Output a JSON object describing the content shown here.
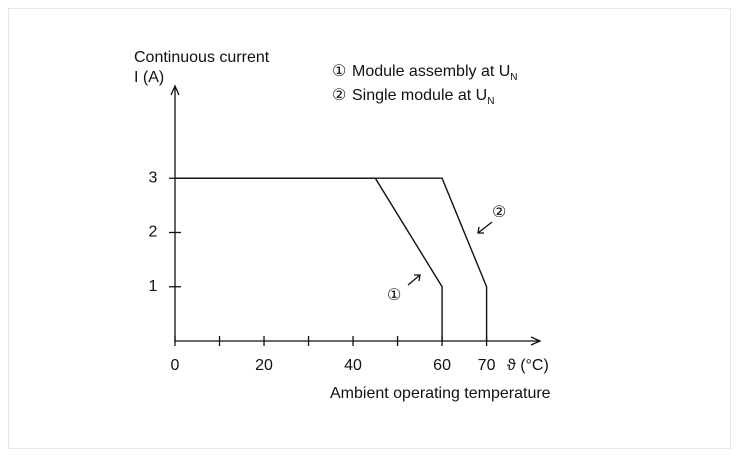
{
  "chart_data": {
    "type": "line",
    "y_label": "Continuous current",
    "y_unit": "I (A)",
    "x_unit": "ϑ (°C)",
    "x_label": "Ambient operating temperature",
    "xlim": [
      0,
      82
    ],
    "ylim": [
      0,
      4.7
    ],
    "xticks": [
      0,
      20,
      40,
      60,
      70
    ],
    "xminorticks": [
      10,
      30,
      50
    ],
    "yticks": [
      1,
      2,
      3
    ],
    "series": [
      {
        "name": "Module assembly at U",
        "name_sub": "N",
        "marker": "①",
        "color": "#111",
        "x": [
          0,
          45,
          60,
          60
        ],
        "values": [
          3,
          3,
          1,
          0
        ]
      },
      {
        "name": "Single module at U",
        "name_sub": "N",
        "marker": "②",
        "color": "#111",
        "x": [
          0,
          60,
          70,
          70
        ],
        "values": [
          3,
          3,
          1,
          0
        ]
      }
    ]
  }
}
